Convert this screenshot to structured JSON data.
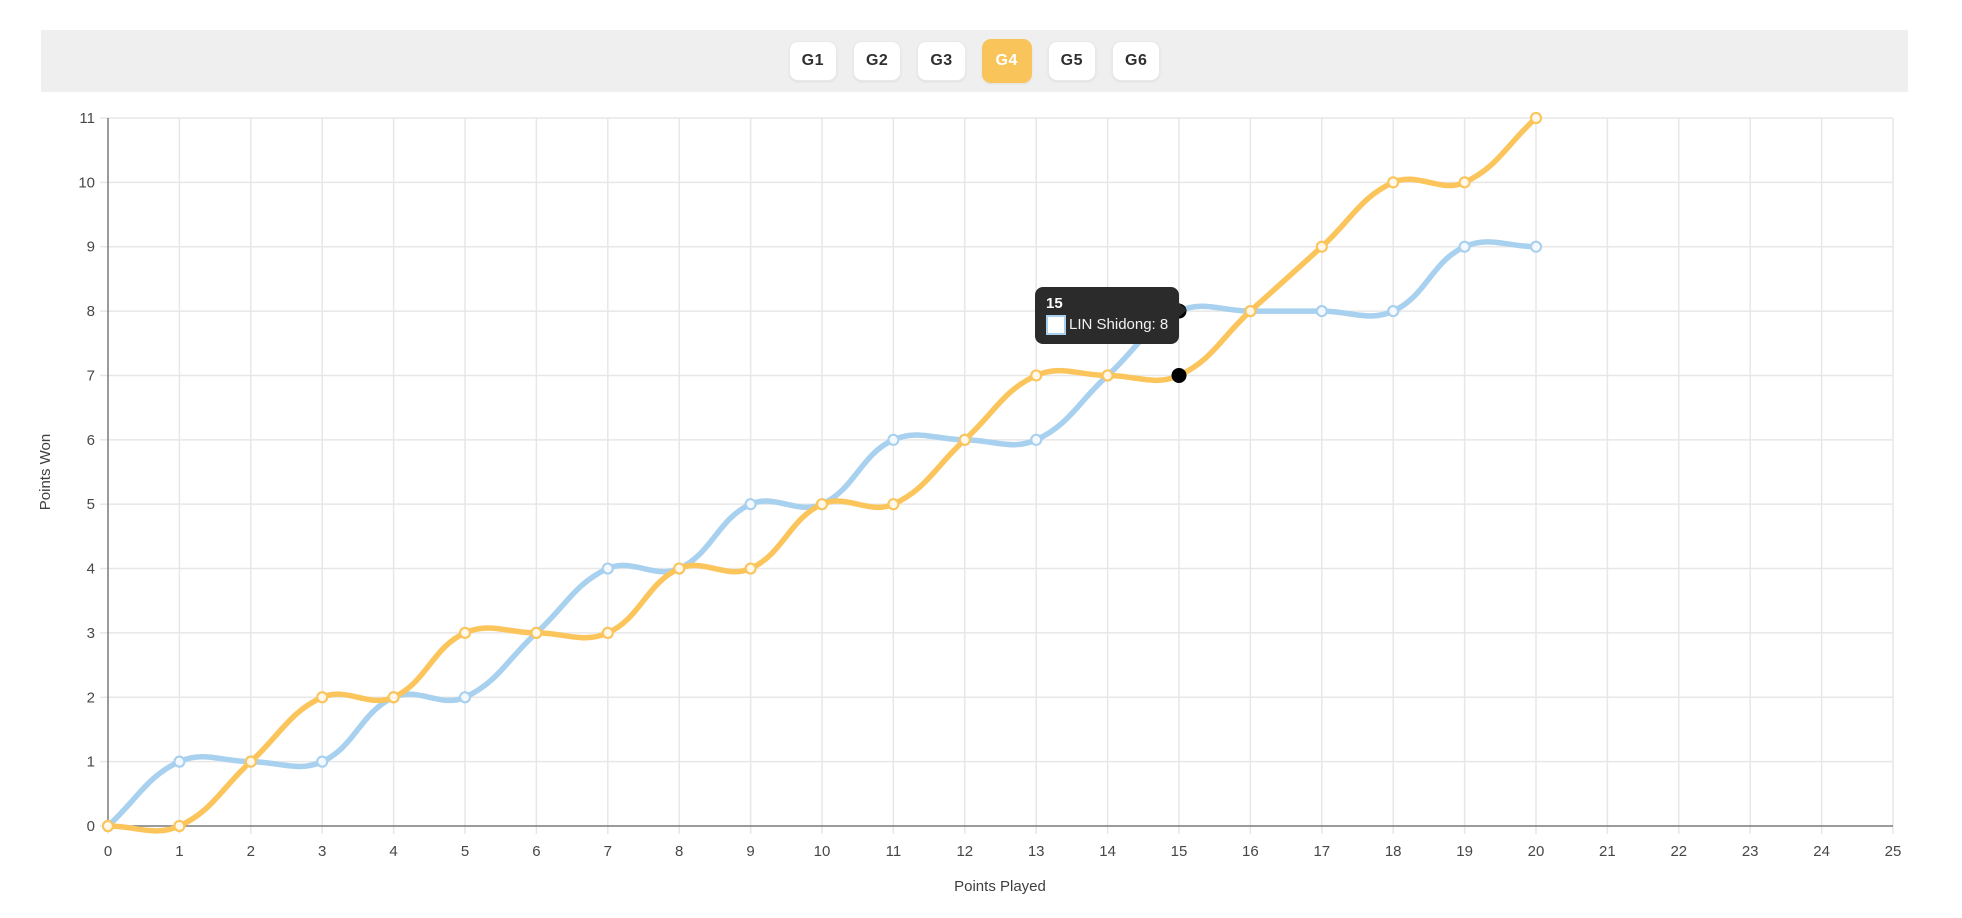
{
  "colors": {
    "series_blue": "#A8D0EF",
    "series_yellow": "#FBC55C",
    "toolbar_bg": "#EFEFEF",
    "active_button_bg": "#F9C45A",
    "active_button_text": "#FFFFFF",
    "grid": "#E7E7E7",
    "axis": "#7A7A7A",
    "tick_text": "#474747",
    "tooltip_bg": "#2B2B2B",
    "highlight_dot": "#000000",
    "marker_fill": "#FFFFFF"
  },
  "toolbar": {
    "buttons": [
      {
        "label": "G1",
        "active": false
      },
      {
        "label": "G2",
        "active": false
      },
      {
        "label": "G3",
        "active": false
      },
      {
        "label": "G4",
        "active": true
      },
      {
        "label": "G5",
        "active": false
      },
      {
        "label": "G6",
        "active": false
      }
    ]
  },
  "chart_data": {
    "type": "line",
    "title": "",
    "xlabel": "Points Played",
    "ylabel": "Points Won",
    "xlim": [
      0,
      25
    ],
    "ylim": [
      0,
      11
    ],
    "x_ticks": [
      0,
      1,
      2,
      3,
      4,
      5,
      6,
      7,
      8,
      9,
      10,
      11,
      12,
      13,
      14,
      15,
      16,
      17,
      18,
      19,
      20,
      21,
      22,
      23,
      24,
      25
    ],
    "y_ticks": [
      0,
      1,
      2,
      3,
      4,
      5,
      6,
      7,
      8,
      9,
      10,
      11
    ],
    "grid": true,
    "legend": "none",
    "x": [
      0,
      1,
      2,
      3,
      4,
      5,
      6,
      7,
      8,
      9,
      10,
      11,
      12,
      13,
      14,
      15,
      16,
      17,
      18,
      19,
      20
    ],
    "series": [
      {
        "name": "LIN Shidong",
        "color": "#A8D0EF",
        "values": [
          0,
          1,
          1,
          1,
          2,
          2,
          3,
          4,
          4,
          5,
          5,
          6,
          6,
          6,
          7,
          8,
          8,
          8,
          8,
          9,
          9
        ]
      },
      {
        "name": "",
        "color": "#FBC55C",
        "values": [
          0,
          0,
          1,
          2,
          2,
          3,
          3,
          3,
          4,
          4,
          5,
          5,
          6,
          7,
          7,
          7,
          8,
          9,
          10,
          10,
          11
        ]
      }
    ]
  },
  "tooltip": {
    "title": "15",
    "item_label": "LIN Shidong: 8",
    "points": [
      {
        "series": 0,
        "x": 15,
        "y": 8
      },
      {
        "series": 1,
        "x": 15,
        "y": 7
      }
    ]
  }
}
